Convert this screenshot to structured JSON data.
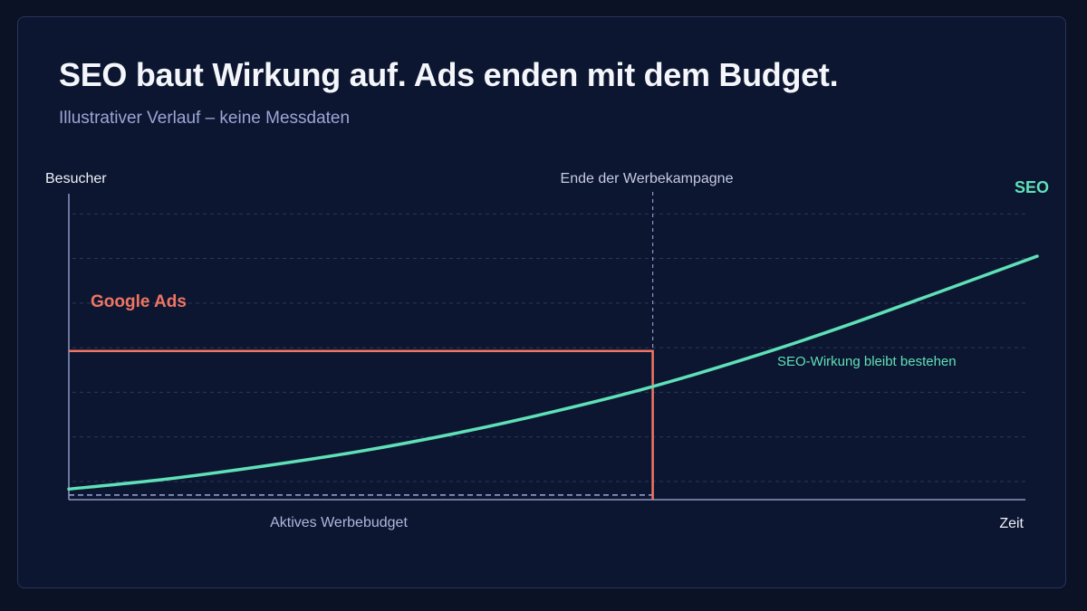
{
  "header": {
    "title": "SEO baut Wirkung auf. Ads enden mit dem Budget.",
    "subtitle": "Illustrativer Verlauf – keine Messdaten"
  },
  "chart_data": {
    "type": "line",
    "ylabel": "Besucher",
    "xlabel": "Zeit",
    "xlim": [
      0,
      100
    ],
    "ylim": [
      0,
      100
    ],
    "grid": true,
    "series": [
      {
        "name": "Google Ads",
        "color": "#f07563",
        "points": [
          [
            0,
            45
          ],
          [
            60.3,
            45
          ],
          [
            60.3,
            0
          ]
        ]
      },
      {
        "name": "SEO",
        "color": "#5fe0b8",
        "points": [
          [
            0,
            3.2
          ],
          [
            10,
            6.2
          ],
          [
            20,
            10.1
          ],
          [
            30,
            14.6
          ],
          [
            40,
            20.1
          ],
          [
            50,
            26.6
          ],
          [
            60,
            34.0
          ],
          [
            70,
            42.7
          ],
          [
            80,
            52.4
          ],
          [
            90,
            63.0
          ],
          [
            100,
            73.7
          ]
        ]
      },
      {
        "name": "Aktives Werbebudget",
        "color": "#9aa6d6",
        "points": [
          [
            0,
            1.4
          ],
          [
            60.3,
            1.4
          ]
        ]
      }
    ],
    "annotations": {
      "campaign_end": {
        "label": "Ende der Werbekampagne",
        "x": 60.3
      },
      "seo_effect": "SEO-Wirkung bleibt bestehen",
      "budget": "Aktives Werbebudget"
    }
  },
  "colors": {
    "background": "#0b1226",
    "card": "#0d1630",
    "ads": "#f07563",
    "seo": "#5fe0b8",
    "axis": "#8c96c4",
    "grid": "#2a375c"
  }
}
